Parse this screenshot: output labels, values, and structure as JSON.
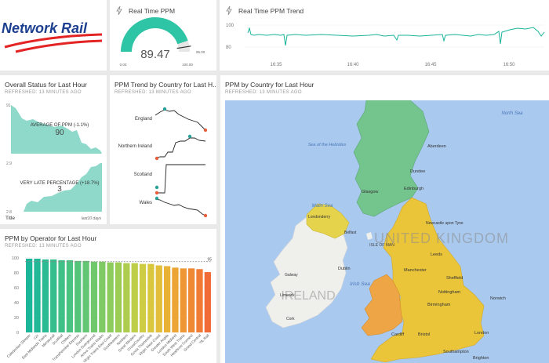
{
  "logo": {
    "text": "Network Rail"
  },
  "gauge": {
    "title": "Real Time PPM",
    "value_text": "89.47",
    "value": 89.47,
    "min_label": "0.00",
    "max_label": "100.00",
    "target_label": "95.00",
    "target": 95,
    "fill_color": "#2ec4a6",
    "track_color": "#e6e6e6"
  },
  "trend": {
    "title": "Real Time PPM Trend",
    "y_labels": [
      "100",
      "80"
    ],
    "x_labels": [
      "16:35",
      "16:40",
      "16:45",
      "16:50"
    ],
    "line_color": "#19b39a"
  },
  "overall": {
    "title": "Overall Status for Last Hour",
    "refreshed": "REFRESHED: 13 MINUTES AGO",
    "ppm_caption": "AVERAGE OF PPM (-1.1%)",
    "ppm_value": "90",
    "ppm_ymax": "91",
    "late_caption": "VERY LATE PERCENTAGE (+18.7%)",
    "late_value": "3",
    "late_ymax": "2.9",
    "late_ymin": "2.8",
    "footer_left": "Title",
    "footer_right": "last10 days",
    "fill_color": "#8fd9cb"
  },
  "country_trend": {
    "title": "PPM Trend by Country for Last H...",
    "refreshed": "REFRESHED: 13 MINUTES AGO",
    "countries": [
      "England",
      "Northern Ireland",
      "Scotland",
      "Wales"
    ],
    "high_color": "#2aa198",
    "low_color": "#e8603c"
  },
  "map": {
    "title": "PPM by Country for Last Hour",
    "refreshed": "REFRESHED: 13 MINUTES AGO",
    "sea_color": "#a9c9ef",
    "labels": {
      "north_sea": "North Sea",
      "sea_hebrides": "Sea of the Hebrides",
      "malin_sea": "Malin Sea",
      "irish_sea": "Irish Sea",
      "uk": "UNITED KINGDOM",
      "ireland": "IRELAND",
      "isle_of_man": "ISLE OF MAN",
      "aberdeen": "Aberdeen",
      "dundee": "Dundee",
      "edinburgh": "Edinburgh",
      "glasgow": "Glasgow",
      "belfast": "Belfast",
      "londonderry": "Londonderry",
      "newcastle": "Newcastle upon Tyne",
      "leeds": "Leeds",
      "manchester": "Manchester",
      "sheffield": "Sheffield",
      "nottingham": "Nottingham",
      "birmingham": "Birmingham",
      "cardiff": "Cardiff",
      "bristol": "Bristol",
      "london": "London",
      "dublin": "Dublin",
      "galway": "Galway",
      "limerick": "Limerick",
      "cork": "Cork",
      "norwich": "Norwich",
      "southampton": "Southampton",
      "brighton": "Brighton"
    }
  },
  "operators": {
    "title": "PPM by Operator for Last Hour",
    "refreshed": "REFRESHED: 13 MINUTES AGO",
    "y_labels": [
      "100",
      "80",
      "60",
      "40",
      "20",
      "0"
    ],
    "target_label": "95",
    "names": [
      "Caledonian Sleeper",
      "c2c",
      "East Midlands Trains",
      "Merseyrail",
      "ScotRail",
      "Chiltern",
      "TransPennine Express",
      "Southern",
      "London Overground",
      "Arriva Trains Wales",
      "Virgin Trains East Coast",
      "Southeastern",
      "Northern",
      "Great Western",
      "CrossCountry",
      "Govia Thameslink",
      "Virgin West Coast",
      "Greater Anglia",
      "London Midland",
      "South West Trains",
      "Heathrow Connect",
      "Grand Central",
      "TfL Rail"
    ],
    "values": [
      99,
      99,
      98,
      98,
      97,
      97,
      96,
      96,
      95,
      95,
      94,
      94,
      93,
      93,
      92,
      92,
      90,
      89,
      87,
      86,
      86,
      85,
      81
    ],
    "colors": [
      "#1bb59a",
      "#22b897",
      "#2bbb92",
      "#35bd8d",
      "#3fc087",
      "#4ac281",
      "#55c47b",
      "#62c674",
      "#70c86c",
      "#7eca64",
      "#8dcb5c",
      "#9dcc55",
      "#aecd4e",
      "#bfce48",
      "#cdcc42",
      "#d9c73e",
      "#e2be3a",
      "#e8b237",
      "#eca535",
      "#ef9734",
      "#f08934",
      "#f17b35",
      "#f06b38"
    ]
  }
}
